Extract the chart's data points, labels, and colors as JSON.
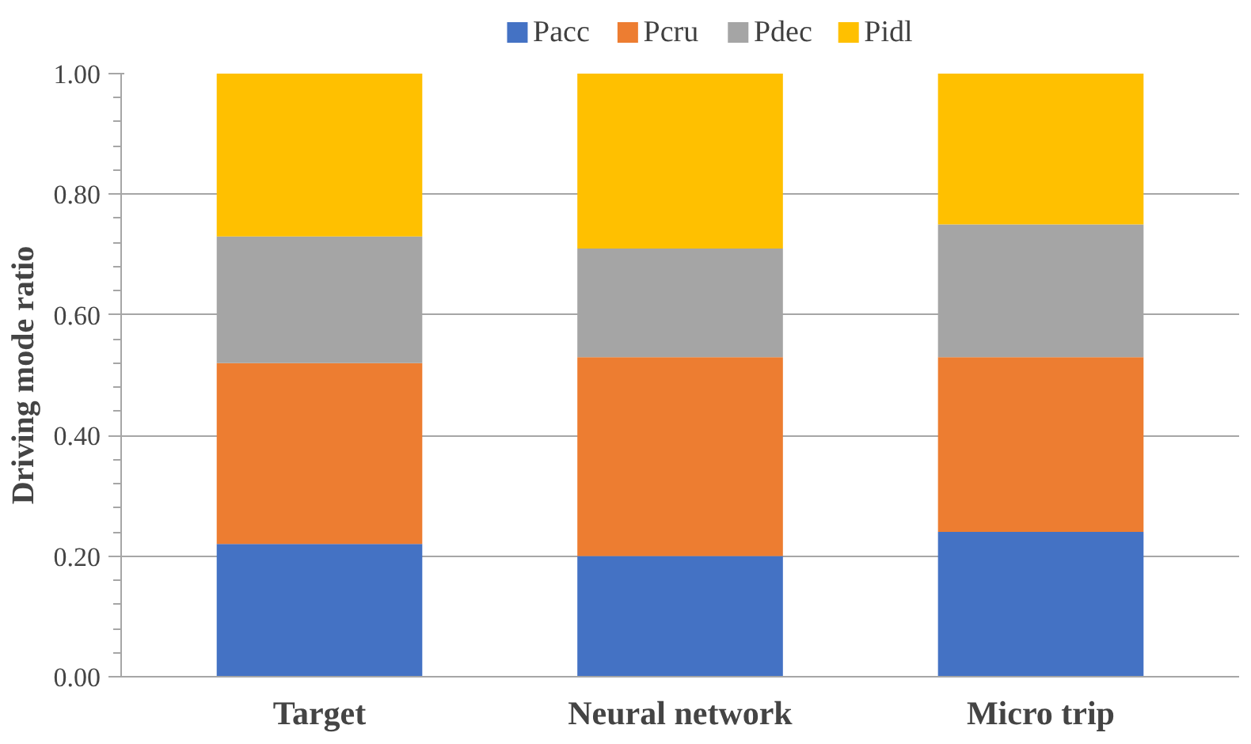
{
  "chart_data": {
    "type": "bar",
    "stacked": true,
    "ylabel": "Driving mode ratio",
    "categories": [
      "Target",
      "Neural network",
      "Micro trip"
    ],
    "series": [
      {
        "name": "Pacc",
        "color": "#4472c4",
        "values": [
          0.22,
          0.2,
          0.24
        ]
      },
      {
        "name": "Pcru",
        "color": "#ed7d31",
        "values": [
          0.3,
          0.33,
          0.29
        ]
      },
      {
        "name": "Pdec",
        "color": "#a5a5a5",
        "values": [
          0.21,
          0.18,
          0.22
        ]
      },
      {
        "name": "Pidl",
        "color": "#ffc000",
        "values": [
          0.27,
          0.29,
          0.25
        ]
      }
    ],
    "ylim": [
      0,
      1
    ],
    "yticks": [
      {
        "value": 0,
        "label": "0.00"
      },
      {
        "value": 0.2,
        "label": "0.20"
      },
      {
        "value": 0.4,
        "label": "0.40"
      },
      {
        "value": 0.6,
        "label": "0.60"
      },
      {
        "value": 0.8,
        "label": "0.80"
      },
      {
        "value": 1,
        "label": "1.00"
      }
    ],
    "grid": "y",
    "legend": "top"
  }
}
